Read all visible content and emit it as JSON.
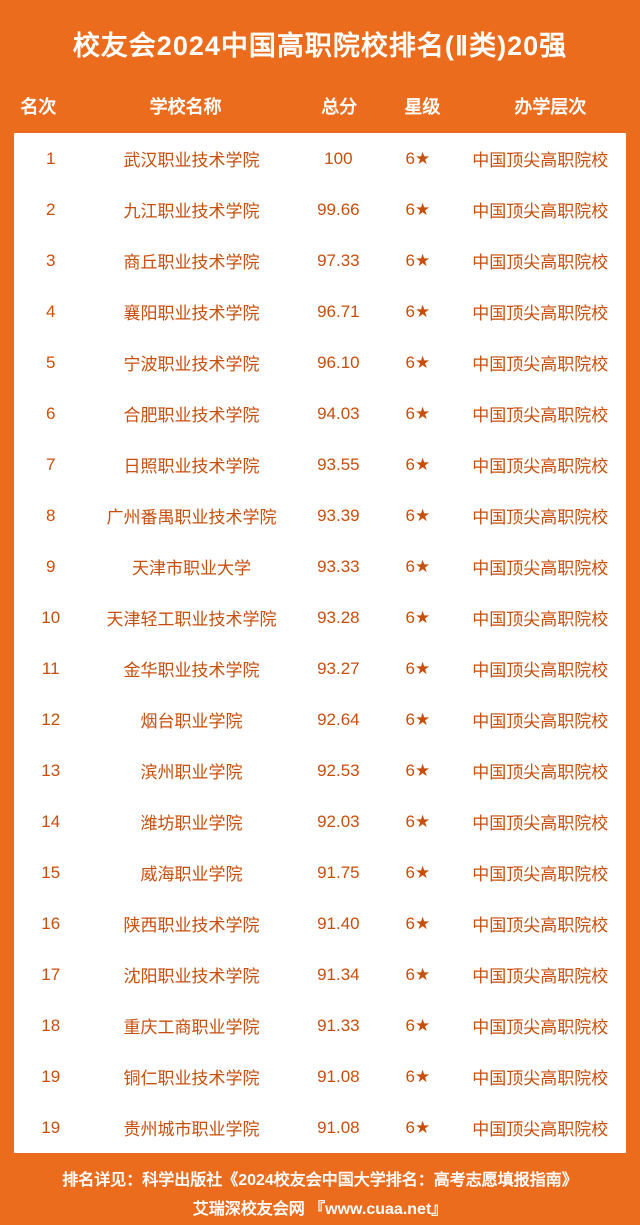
{
  "title": "校友会2024中国高职院校排名(Ⅱ类)20强",
  "columns": {
    "rank": "名次",
    "name": "学校名称",
    "score": "总分",
    "star": "星级",
    "level": "办学层次"
  },
  "rows": [
    {
      "rank": "1",
      "name": "武汉职业技术学院",
      "score": "100",
      "star": "6★",
      "level": "中国顶尖高职院校"
    },
    {
      "rank": "2",
      "name": "九江职业技术学院",
      "score": "99.66",
      "star": "6★",
      "level": "中国顶尖高职院校"
    },
    {
      "rank": "3",
      "name": "商丘职业技术学院",
      "score": "97.33",
      "star": "6★",
      "level": "中国顶尖高职院校"
    },
    {
      "rank": "4",
      "name": "襄阳职业技术学院",
      "score": "96.71",
      "star": "6★",
      "level": "中国顶尖高职院校"
    },
    {
      "rank": "5",
      "name": "宁波职业技术学院",
      "score": "96.10",
      "star": "6★",
      "level": "中国顶尖高职院校"
    },
    {
      "rank": "6",
      "name": "合肥职业技术学院",
      "score": "94.03",
      "star": "6★",
      "level": "中国顶尖高职院校"
    },
    {
      "rank": "7",
      "name": "日照职业技术学院",
      "score": "93.55",
      "star": "6★",
      "level": "中国顶尖高职院校"
    },
    {
      "rank": "8",
      "name": "广州番禺职业技术学院",
      "score": "93.39",
      "star": "6★",
      "level": "中国顶尖高职院校"
    },
    {
      "rank": "9",
      "name": "天津市职业大学",
      "score": "93.33",
      "star": "6★",
      "level": "中国顶尖高职院校"
    },
    {
      "rank": "10",
      "name": "天津轻工职业技术学院",
      "score": "93.28",
      "star": "6★",
      "level": "中国顶尖高职院校"
    },
    {
      "rank": "11",
      "name": "金华职业技术学院",
      "score": "93.27",
      "star": "6★",
      "level": "中国顶尖高职院校"
    },
    {
      "rank": "12",
      "name": "烟台职业学院",
      "score": "92.64",
      "star": "6★",
      "level": "中国顶尖高职院校"
    },
    {
      "rank": "13",
      "name": "滨州职业学院",
      "score": "92.53",
      "star": "6★",
      "level": "中国顶尖高职院校"
    },
    {
      "rank": "14",
      "name": "潍坊职业学院",
      "score": "92.03",
      "star": "6★",
      "level": "中国顶尖高职院校"
    },
    {
      "rank": "15",
      "name": "威海职业学院",
      "score": "91.75",
      "star": "6★",
      "level": "中国顶尖高职院校"
    },
    {
      "rank": "16",
      "name": "陕西职业技术学院",
      "score": "91.40",
      "star": "6★",
      "level": "中国顶尖高职院校"
    },
    {
      "rank": "17",
      "name": "沈阳职业技术学院",
      "score": "91.34",
      "star": "6★",
      "level": "中国顶尖高职院校"
    },
    {
      "rank": "18",
      "name": "重庆工商职业学院",
      "score": "91.33",
      "star": "6★",
      "level": "中国顶尖高职院校"
    },
    {
      "rank": "19",
      "name": "铜仁职业技术学院",
      "score": "91.08",
      "star": "6★",
      "level": "中国顶尖高职院校"
    },
    {
      "rank": "19",
      "name": "贵州城市职业学院",
      "score": "91.08",
      "star": "6★",
      "level": "中国顶尖高职院校"
    }
  ],
  "footer": {
    "line1": "排名详见：科学出版社《2024校友会中国大学排名：高考志愿填报指南》",
    "line2": "艾瑞深校友会网 『www.cuaa.net』"
  },
  "colors": {
    "brand_bg": "#ec6c1e",
    "row_text": "#c84e0c",
    "table_bg": "#ffffff"
  }
}
